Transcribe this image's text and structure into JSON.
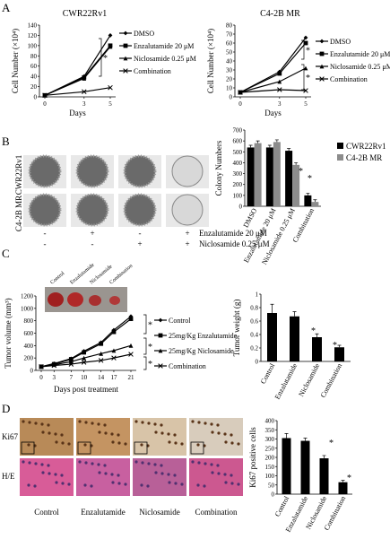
{
  "panel_labels": [
    "A",
    "B",
    "C",
    "D"
  ],
  "colors": {
    "black": "#000000",
    "gray": "#8c8c8c",
    "tissue_ki67": "#c8a070",
    "tissue_he": "#d06898"
  },
  "chart_data": [
    {
      "id": "A1",
      "type": "line",
      "title": "CWR22Rv1",
      "xlabel": "Days",
      "ylabel": "Cell Number (×10⁴)",
      "x": [
        0,
        3,
        5
      ],
      "xticks": [
        "0",
        "3",
        "5"
      ],
      "yticks": [
        "0",
        "20",
        "40",
        "60",
        "80",
        "100",
        "120",
        "140"
      ],
      "ylim": [
        0,
        140
      ],
      "series": [
        {
          "name": "DMSO",
          "values": [
            3,
            40,
            120
          ]
        },
        {
          "name": "Enzalutamide 20 μM",
          "values": [
            3,
            38,
            100
          ]
        },
        {
          "name": "Niclosamide 0.25 μM",
          "values": [
            3,
            36,
            98
          ]
        },
        {
          "name": "Combination",
          "values": [
            3,
            10,
            18
          ]
        }
      ],
      "annotations": [
        "*"
      ]
    },
    {
      "id": "A2",
      "type": "line",
      "title": "C4-2B MR",
      "xlabel": "Days",
      "ylabel": "Cell Number (×10⁴)",
      "x": [
        0,
        3,
        5
      ],
      "xticks": [
        "0",
        "3",
        "5"
      ],
      "yticks": [
        "0",
        "10",
        "20",
        "30",
        "40",
        "50",
        "60",
        "70",
        "80"
      ],
      "ylim": [
        0,
        80
      ],
      "series": [
        {
          "name": "DMSO",
          "values": [
            5,
            28,
            66
          ]
        },
        {
          "name": "Enzalutamide 20 μM",
          "values": [
            5,
            26,
            60
          ]
        },
        {
          "name": "Niclosamide 0.25 μM",
          "values": [
            5,
            17,
            32
          ]
        },
        {
          "name": "Combination",
          "values": [
            5,
            8,
            7
          ]
        }
      ],
      "annotations": [
        "*",
        "*"
      ]
    },
    {
      "id": "B",
      "type": "bar",
      "xlabel": "",
      "ylabel": "Colony Numbers",
      "categories": [
        "DMSO",
        "Enzalutamide 20 μM",
        "Niclosamide 0.25 μM",
        "Combination"
      ],
      "yticks": [
        "0",
        "100",
        "200",
        "300",
        "400",
        "500",
        "600",
        "700"
      ],
      "ylim": [
        0,
        700
      ],
      "series": [
        {
          "name": "CWR22Rv1",
          "values": [
            540,
            540,
            510,
            100
          ]
        },
        {
          "name": "C4-2B MR",
          "values": [
            580,
            590,
            380,
            40
          ]
        }
      ],
      "annotations": [
        "*",
        "*"
      ],
      "legend": "right"
    },
    {
      "id": "C1",
      "type": "line",
      "xlabel": "Days post treatment",
      "ylabel": "Tumor volume (mm³)",
      "x": [
        0,
        3,
        7,
        10,
        14,
        17,
        21
      ],
      "xticks": [
        "0",
        "3",
        "7",
        "10",
        "14",
        "17",
        "21"
      ],
      "yticks": [
        "0",
        "200",
        "400",
        "600",
        "800",
        "1000",
        "1200"
      ],
      "ylim": [
        0,
        1200
      ],
      "series": [
        {
          "name": "Control",
          "values": [
            60,
            110,
            190,
            310,
            450,
            650,
            870
          ]
        },
        {
          "name": "25mg/Kg Enzalutamide",
          "values": [
            60,
            100,
            180,
            290,
            430,
            620,
            830
          ]
        },
        {
          "name": "25mg/Kg Niclosamide",
          "values": [
            60,
            90,
            140,
            200,
            270,
            320,
            400
          ]
        },
        {
          "name": "Combination",
          "values": [
            60,
            80,
            100,
            130,
            160,
            200,
            260
          ]
        }
      ],
      "annotations": [
        "*",
        "*",
        "*"
      ]
    },
    {
      "id": "C2",
      "type": "bar",
      "ylabel": "Tumor weight (g)",
      "categories": [
        "Control",
        "Enzalutamide",
        "Niclosamide",
        "Combination"
      ],
      "yticks": [
        "0",
        "0.2",
        "0.4",
        "0.6",
        "0.8",
        "1"
      ],
      "ylim": [
        0,
        1
      ],
      "values": [
        0.72,
        0.67,
        0.36,
        0.21
      ],
      "errors": [
        0.13,
        0.07,
        0.05,
        0.03
      ],
      "annotations": [
        "*",
        "*"
      ]
    },
    {
      "id": "D",
      "type": "bar",
      "ylabel": "Ki67 positive cells",
      "categories": [
        "Control",
        "Enzalutamide",
        "Niclosamide",
        "Combination"
      ],
      "yticks": [
        "0",
        "50",
        "100",
        "150",
        "200",
        "250",
        "300",
        "350",
        "400"
      ],
      "ylim": [
        0,
        400
      ],
      "values": [
        305,
        290,
        195,
        65
      ],
      "errors": [
        25,
        15,
        15,
        10
      ],
      "annotations": [
        "*",
        "*"
      ]
    }
  ],
  "panel_b": {
    "row_labels": [
      "CWR22Rv1",
      "C4-2B MR"
    ],
    "treatments": [
      {
        "label": "Enzalutamide 20 μM",
        "marks": [
          "-",
          "+",
          "-",
          "+"
        ]
      },
      {
        "label": "Niclosamide 0.25 μM",
        "marks": [
          "-",
          "-",
          "+",
          "+"
        ]
      }
    ]
  },
  "panel_c": {
    "photo_labels": [
      "Control",
      "Enzalutamide",
      "Niclosamide",
      "Combination"
    ]
  },
  "panel_d": {
    "row_labels": [
      "Ki67",
      "H/E"
    ],
    "col_labels": [
      "Control",
      "Enzalutamide",
      "Niclosamide",
      "Combination"
    ]
  }
}
